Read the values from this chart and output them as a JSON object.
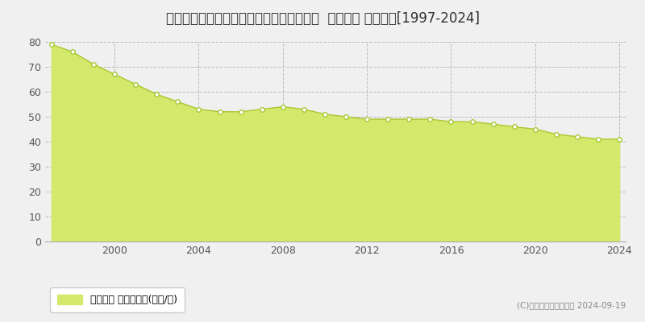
{
  "title": "神奈川県横須賀市桜が丘１丁目８６番３６  基準地価 地価推移[1997-2024]",
  "years": [
    1997,
    1998,
    1999,
    2000,
    2001,
    2002,
    2003,
    2004,
    2005,
    2006,
    2007,
    2008,
    2009,
    2010,
    2011,
    2012,
    2013,
    2014,
    2015,
    2016,
    2017,
    2018,
    2019,
    2020,
    2021,
    2022,
    2023,
    2024
  ],
  "values": [
    79,
    76,
    71,
    67,
    63,
    59,
    56,
    53,
    52,
    52,
    53,
    54,
    53,
    51,
    50,
    49,
    49,
    49,
    49,
    48,
    48,
    47,
    46,
    45,
    43,
    42,
    41,
    41
  ],
  "fill_color": "#d4e96b",
  "line_color": "#a8c832",
  "marker_color": "#ffffff",
  "marker_edge_color": "#a8c832",
  "background_color": "#f0f0f0",
  "plot_bg_color": "#f0f0f0",
  "grid_color": "#bbbbbb",
  "ylim": [
    0,
    80
  ],
  "yticks": [
    0,
    10,
    20,
    30,
    40,
    50,
    60,
    70,
    80
  ],
  "xtick_years": [
    2000,
    2004,
    2008,
    2012,
    2016,
    2020,
    2024
  ],
  "legend_label": "基準地価 平均坪単価(万円/坪)",
  "copyright_text": "(C)土地価格ドットコム 2024-09-19",
  "title_fontsize": 12,
  "axis_fontsize": 9,
  "legend_fontsize": 9
}
